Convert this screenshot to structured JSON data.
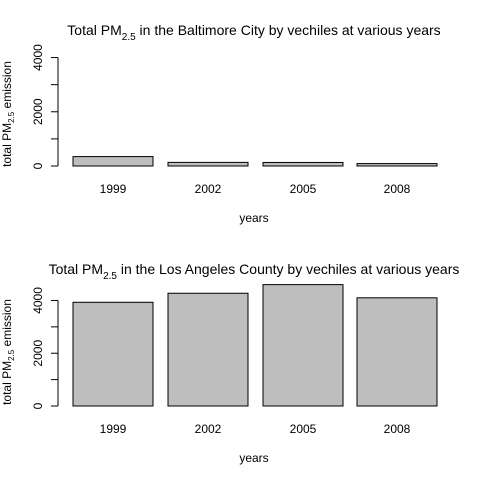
{
  "colors": {
    "bar_fill": "#bebebe",
    "bar_stroke": "#000000",
    "background": "#ffffff"
  },
  "chart_data": [
    {
      "type": "bar",
      "title": {
        "before": "Total PM",
        "sub": "2.5",
        "after": " in the Baltimore City by vechiles at various years"
      },
      "xlabel": "years",
      "ylabel": {
        "before": "total PM",
        "sub": "2.5",
        "after": " emission"
      },
      "categories": [
        "1999",
        "2002",
        "2005",
        "2008"
      ],
      "values": [
        347,
        134,
        130,
        89
      ],
      "ylim": [
        0,
        4500
      ],
      "yticks": [
        0,
        2000,
        4000
      ],
      "ytick_labels": [
        "0",
        "2000",
        "4000"
      ]
    },
    {
      "type": "bar",
      "title": {
        "before": "Total PM",
        "sub": "2.5",
        "after": " in the Los Angeles County by vechiles at various years"
      },
      "xlabel": "years",
      "ylabel": {
        "before": "total PM",
        "sub": "2.5",
        "after": " emission"
      },
      "categories": [
        "1999",
        "2002",
        "2005",
        "2008"
      ],
      "values": [
        3931,
        4274,
        4601,
        4101
      ],
      "ylim": [
        0,
        4700
      ],
      "yticks": [
        0,
        2000,
        4000
      ],
      "ytick_labels": [
        "0",
        "2000",
        "4000"
      ]
    }
  ]
}
